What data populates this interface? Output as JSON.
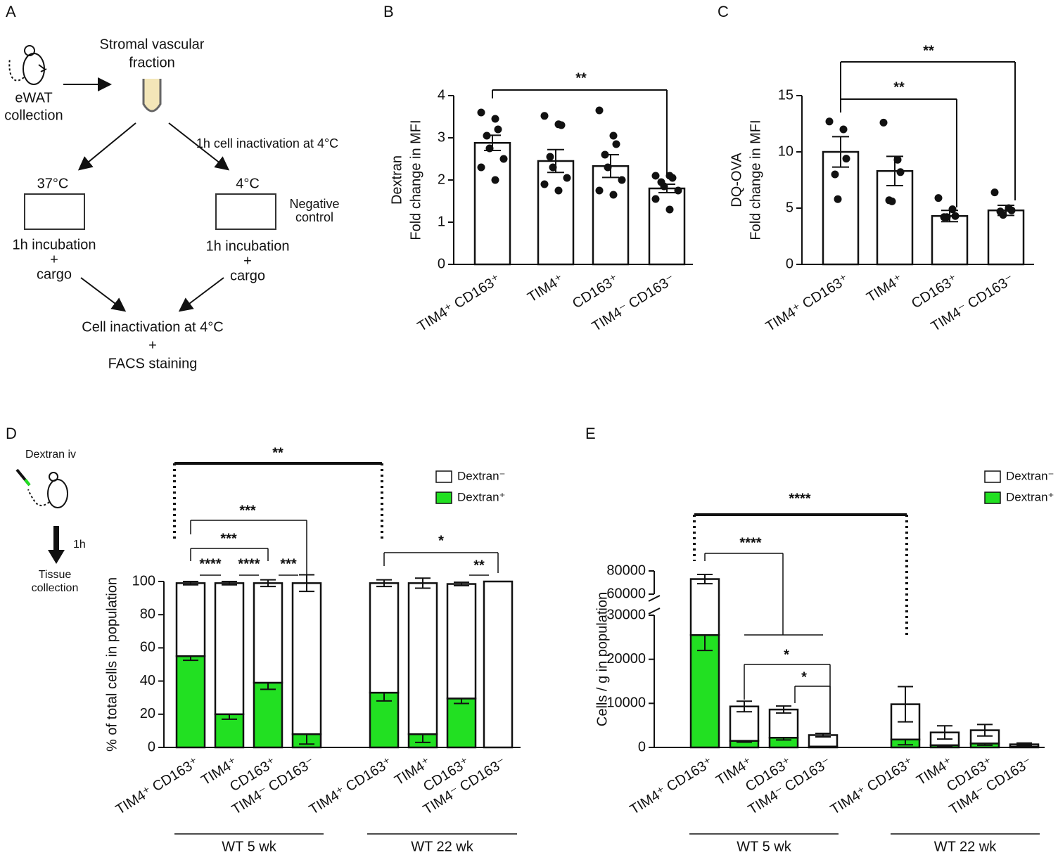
{
  "panel_a": {
    "label": "A",
    "sample": [
      "eWAT",
      "collection"
    ],
    "fraction": [
      "Stromal vascular",
      "fraction"
    ],
    "inactivation_step": "1h cell inactivation at 4°C",
    "warm": {
      "temp": "37°C",
      "step": [
        "1h incubation",
        "+",
        "cargo"
      ]
    },
    "cold": {
      "temp": "4°C",
      "note": [
        "Negative",
        "control"
      ],
      "step": [
        "1h incubation",
        "+",
        "cargo"
      ]
    },
    "final": [
      "Cell inactivation at 4°C",
      "+",
      "FACS staining"
    ]
  },
  "chart_data": [
    {
      "type": "bar",
      "panel_label": "B",
      "ylabel": [
        "Dextran",
        "Fold change in MFI"
      ],
      "categories": [
        "TIM4⁺ CD163⁺",
        "TIM4⁺",
        "CD163⁺",
        "TIM4⁻ CD163⁻"
      ],
      "values": [
        2.88,
        2.45,
        2.33,
        1.8
      ],
      "errors": [
        0.18,
        0.27,
        0.27,
        0.1
      ],
      "points": [
        [
          3.6,
          3.45,
          3.2,
          3.05,
          2.75,
          2.5,
          2.3,
          2.0
        ],
        [
          3.52,
          3.32,
          3.3,
          2.55,
          2.3,
          2.05,
          1.9,
          1.75
        ],
        [
          3.65,
          3.05,
          2.85,
          2.6,
          2.3,
          2.0,
          1.75,
          1.65
        ],
        [
          2.1,
          2.1,
          2.05,
          1.95,
          1.85,
          1.75,
          1.55,
          1.3
        ]
      ],
      "ylim": [
        0,
        4
      ],
      "yticks": [
        0,
        1,
        2,
        3,
        4
      ],
      "annotations": [
        "**"
      ]
    },
    {
      "type": "bar",
      "panel_label": "C",
      "ylabel": [
        "DQ-OVA",
        "Fold change in MFI"
      ],
      "categories": [
        "TIM4⁺ CD163⁺",
        "TIM4⁺",
        "CD163⁺",
        "TIM4⁻ CD163⁻"
      ],
      "values": [
        10.0,
        8.3,
        4.3,
        4.8
      ],
      "errors": [
        1.35,
        1.3,
        0.5,
        0.45
      ],
      "points": [
        [
          12.7,
          12.0,
          9.4,
          8.0,
          5.8
        ],
        [
          12.6,
          9.3,
          8.2,
          5.7,
          5.6
        ],
        [
          5.9,
          4.9,
          4.3,
          4.2,
          4.2
        ],
        [
          6.4,
          5.0,
          4.8,
          4.7,
          4.4
        ]
      ],
      "ylim": [
        0,
        15
      ],
      "yticks": [
        0,
        5,
        10,
        15
      ],
      "annotations": [
        "**",
        "**"
      ]
    },
    {
      "type": "stacked_bar",
      "panel_label": "D",
      "ylabel": "% of total cells in population",
      "inset": [
        "Dextran iv",
        "1h",
        "Tissue",
        "collection"
      ],
      "categories": [
        "TIM4⁺ CD163⁺",
        "TIM4⁺",
        "CD163⁺",
        "TIM4⁻ CD163⁻",
        "TIM4⁺ CD163⁺",
        "TIM4⁺",
        "CD163⁺",
        "TIM4⁻ CD163⁻"
      ],
      "groups": [
        "WT 5 wk",
        "WT 22 wk"
      ],
      "series": [
        {
          "name": "Dextran⁺",
          "color": "#22e022",
          "values": [
            55,
            20,
            39,
            8,
            33,
            8,
            29.5,
            0
          ],
          "errors": [
            2.5,
            3,
            4,
            6,
            5,
            5,
            3,
            0
          ]
        },
        {
          "name": "Dextran⁻",
          "color": "#ffffff",
          "values": [
            44,
            79,
            60,
            91,
            66,
            91,
            69,
            100
          ],
          "errors": [
            1,
            1,
            2,
            5,
            2,
            3,
            1,
            0
          ]
        }
      ],
      "ylim": [
        0,
        100
      ],
      "yticks": [
        0,
        20,
        40,
        60,
        80,
        100
      ],
      "annotations": [
        "**",
        "***",
        "***",
        "****",
        "****",
        "***",
        "*",
        "**"
      ]
    },
    {
      "type": "stacked_bar",
      "panel_label": "E",
      "ylabel": "Cells / g in population",
      "categories": [
        "TIM4⁺ CD163⁺",
        "TIM4⁺",
        "CD163⁺",
        "TIM4⁻ CD163⁻",
        "TIM4⁺ CD163⁺",
        "TIM4⁺",
        "CD163⁺",
        "TIM4⁻ CD163⁻"
      ],
      "groups": [
        "WT 5 wk",
        "WT 22 wk"
      ],
      "series": [
        {
          "name": "Dextran⁺",
          "color": "#22e022",
          "values": [
            25500,
            1500,
            2200,
            200,
            1800,
            500,
            900,
            200
          ],
          "errors": [
            3500,
            300,
            500,
            100,
            1200,
            300,
            400,
            100
          ]
        },
        {
          "name": "Dextran⁻",
          "color": "#ffffff",
          "values": [
            47500,
            7800,
            6400,
            2600,
            8000,
            2900,
            3000,
            500
          ],
          "errors": [
            4000,
            1200,
            800,
            400,
            4000,
            1500,
            1300,
            300
          ]
        }
      ],
      "ylim": [
        0,
        80000
      ],
      "ybreak": [
        30000,
        60000
      ],
      "yticks": [
        0,
        10000,
        20000,
        30000,
        60000,
        80000
      ],
      "annotations": [
        "****",
        "****",
        "*",
        "*"
      ]
    }
  ]
}
